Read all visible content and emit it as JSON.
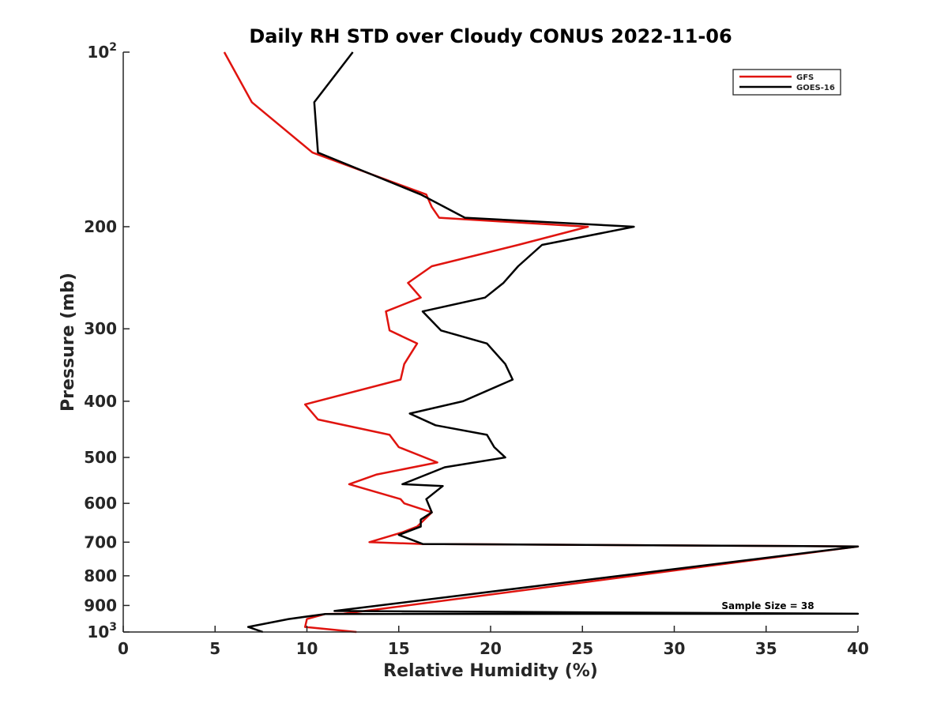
{
  "chart_data": {
    "type": "line",
    "title": "Daily RH STD over Cloudy CONUS 2022-11-06",
    "xlabel": "Relative Humidity (%)",
    "ylabel": "Pressure (mb)",
    "xlim": [
      0,
      40
    ],
    "ylim": [
      100,
      1000
    ],
    "y_scale": "log",
    "y_reversed": true,
    "grid": false,
    "legend_position": "top-right",
    "x_ticks": [
      {
        "value": 0,
        "label": "0"
      },
      {
        "value": 5,
        "label": "5"
      },
      {
        "value": 10,
        "label": "10"
      },
      {
        "value": 15,
        "label": "15"
      },
      {
        "value": 20,
        "label": "20"
      },
      {
        "value": 25,
        "label": "25"
      },
      {
        "value": 30,
        "label": "30"
      },
      {
        "value": 35,
        "label": "35"
      },
      {
        "value": 40,
        "label": "40"
      }
    ],
    "y_ticks": [
      {
        "value": 100,
        "base": "10",
        "exp": "2"
      },
      {
        "value": 200,
        "base": "200",
        "exp": ""
      },
      {
        "value": 300,
        "base": "300",
        "exp": ""
      },
      {
        "value": 400,
        "base": "400",
        "exp": ""
      },
      {
        "value": 500,
        "base": "500",
        "exp": ""
      },
      {
        "value": 600,
        "base": "600",
        "exp": ""
      },
      {
        "value": 700,
        "base": "700",
        "exp": ""
      },
      {
        "value": 800,
        "base": "800",
        "exp": ""
      },
      {
        "value": 900,
        "base": "900",
        "exp": ""
      },
      {
        "value": 1000,
        "base": "10",
        "exp": "3"
      }
    ],
    "annotation": "Sample Size = 38",
    "series": [
      {
        "name": "GFS",
        "color": "#e0140f",
        "points": [
          [
            5.5,
            100
          ],
          [
            7.0,
            122
          ],
          [
            10.3,
            149
          ],
          [
            16.5,
            176
          ],
          [
            16.8,
            185
          ],
          [
            17.2,
            193
          ],
          [
            25.3,
            200
          ],
          [
            21.5,
            215
          ],
          [
            16.8,
            234
          ],
          [
            15.5,
            250
          ],
          [
            16.2,
            265
          ],
          [
            14.3,
            280
          ],
          [
            14.5,
            302
          ],
          [
            16.0,
            318
          ],
          [
            15.3,
            345
          ],
          [
            15.1,
            367
          ],
          [
            9.9,
            405
          ],
          [
            10.6,
            430
          ],
          [
            14.5,
            457
          ],
          [
            15.0,
            480
          ],
          [
            17.1,
            510
          ],
          [
            13.8,
            535
          ],
          [
            12.3,
            556
          ],
          [
            15.1,
            590
          ],
          [
            15.3,
            600
          ],
          [
            16.8,
            622
          ],
          [
            16.0,
            658
          ],
          [
            15.2,
            673
          ],
          [
            13.4,
            700
          ],
          [
            16.3,
            705
          ],
          [
            40,
            712
          ],
          [
            12.0,
            930
          ],
          [
            11.0,
            931
          ],
          [
            10.0,
            950
          ],
          [
            9.9,
            980
          ],
          [
            12.7,
            1000
          ]
        ]
      },
      {
        "name": "GOES-16",
        "color": "#000000",
        "points": [
          [
            12.5,
            100
          ],
          [
            10.4,
            122
          ],
          [
            10.6,
            149
          ],
          [
            16.2,
            176
          ],
          [
            18.6,
            193
          ],
          [
            27.8,
            200
          ],
          [
            22.8,
            215
          ],
          [
            21.5,
            234
          ],
          [
            20.7,
            250
          ],
          [
            19.7,
            265
          ],
          [
            16.3,
            280
          ],
          [
            17.3,
            302
          ],
          [
            19.8,
            318
          ],
          [
            20.8,
            345
          ],
          [
            21.2,
            367
          ],
          [
            18.5,
            400
          ],
          [
            15.6,
            420
          ],
          [
            17.0,
            440
          ],
          [
            19.8,
            457
          ],
          [
            20.2,
            480
          ],
          [
            20.8,
            500
          ],
          [
            17.5,
            520
          ],
          [
            15.2,
            556
          ],
          [
            17.4,
            560
          ],
          [
            16.5,
            590
          ],
          [
            16.8,
            622
          ],
          [
            16.2,
            640
          ],
          [
            16.2,
            658
          ],
          [
            15.0,
            680
          ],
          [
            16.3,
            705
          ],
          [
            40,
            712
          ],
          [
            11.5,
            920
          ],
          [
            40,
            930
          ],
          [
            11.0,
            931
          ],
          [
            9.0,
            950
          ],
          [
            6.8,
            980
          ],
          [
            7.6,
            1000
          ]
        ]
      }
    ]
  }
}
